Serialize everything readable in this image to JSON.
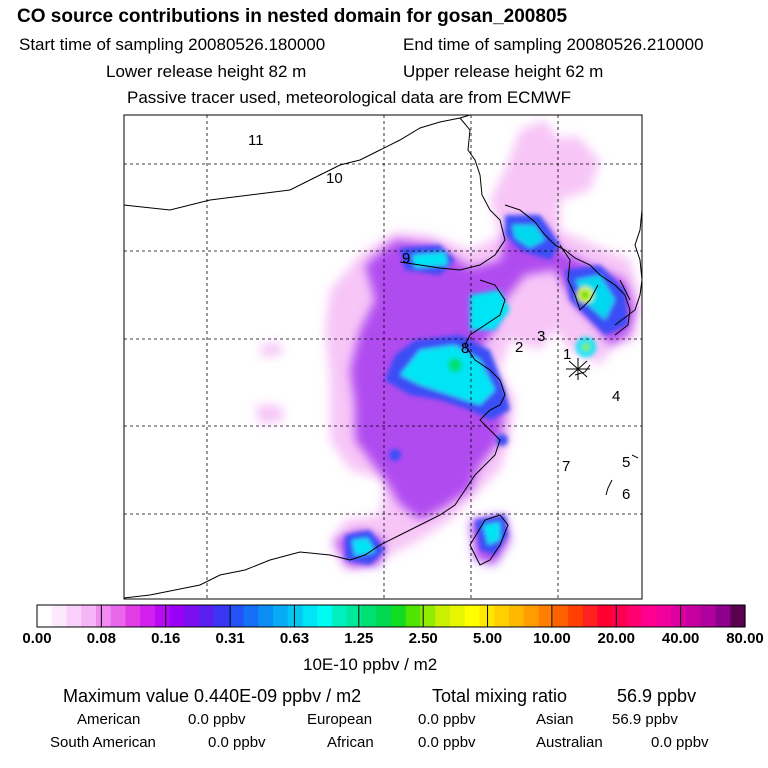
{
  "header": {
    "title": "CO  source contributions in nested domain for gosan_200805",
    "start_label": "Start time of sampling 20080526.180000",
    "end_label": "End time of sampling 20080526.210000",
    "lower_label": "Lower release height   82 m",
    "upper_label": "Upper release height   62 m",
    "note": "Passive tracer used, meteorological data are from ECMWF"
  },
  "chart_data": {
    "type": "heatmap",
    "title": "CO  source contributions in nested domain for gosan_200805",
    "region_labels": [
      "11",
      "10",
      "9",
      "8",
      "2",
      "3",
      "1",
      "4",
      "7",
      "5",
      "6"
    ],
    "receptor_marker": "asterisk",
    "grid": true,
    "legend": {
      "units": "10E-10 ppbv / m2",
      "tick_labels": [
        "0.00",
        "0.08",
        "0.16",
        "0.31",
        "0.63",
        "1.25",
        "2.50",
        "5.00",
        "10.00",
        "20.00",
        "40.00",
        "80.00"
      ],
      "colors": [
        "#ffffff",
        "#fde9fd",
        "#fad0fa",
        "#f6b5f6",
        "#f08cf0",
        "#ea66ea",
        "#e23ce6",
        "#d21fee",
        "#b80af5",
        "#9800f7",
        "#7a10f0",
        "#5b1ef0",
        "#3b35f5",
        "#2552f7",
        "#1470f5",
        "#0a8ef5",
        "#06abf3",
        "#04c7f1",
        "#00e5f5",
        "#00fbf0",
        "#00f0c0",
        "#00e89a",
        "#00e070",
        "#00d950",
        "#10dd20",
        "#50e400",
        "#90ec00",
        "#c8f000",
        "#e8f500",
        "#ffff00",
        "#ffe800",
        "#ffd000",
        "#ffb800",
        "#ff9c00",
        "#ff8000",
        "#ff6000",
        "#ff4000",
        "#ff2020",
        "#ff0030",
        "#ff0050",
        "#ff0070",
        "#ff0090",
        "#f0009c",
        "#dc00a0",
        "#c600a0",
        "#b000a0",
        "#8c008c",
        "#5a0050"
      ]
    }
  },
  "footer": {
    "max_label": "Maximum value  0.440E-09 ppbv / m2",
    "total_label": "Total mixing ratio",
    "total_value": "56.9 ppbv",
    "sources": [
      {
        "name": "American",
        "value": "0.0 ppbv"
      },
      {
        "name": "European",
        "value": "0.0 ppbv"
      },
      {
        "name": "Asian",
        "value": "56.9 ppbv"
      },
      {
        "name": "South American",
        "value": "0.0 ppbv"
      },
      {
        "name": "African",
        "value": "0.0 ppbv"
      },
      {
        "name": "Australian",
        "value": "0.0 ppbv"
      }
    ]
  }
}
